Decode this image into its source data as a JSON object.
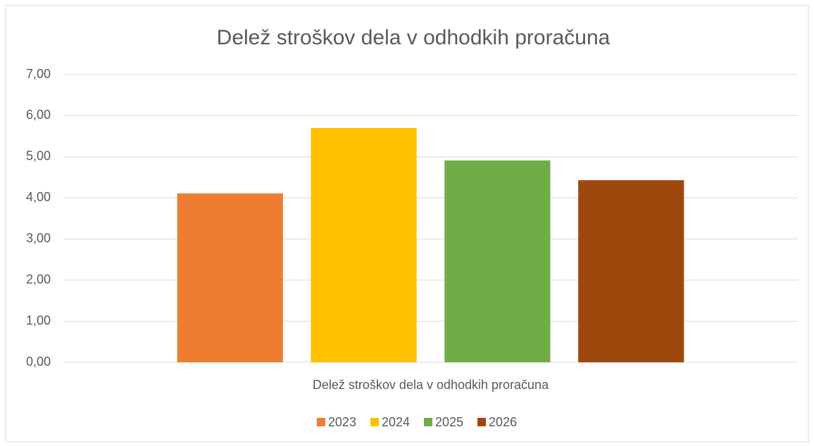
{
  "chart_data": {
    "type": "bar",
    "title": "Delež stroškov dela v odhodkih proračuna",
    "categories": [
      "Delež stroškov dela v odhodkih proračuna"
    ],
    "series": [
      {
        "name": "2023",
        "color": "#ed7d31",
        "values": [
          4.11
        ]
      },
      {
        "name": "2024",
        "color": "#ffc000",
        "values": [
          5.7
        ]
      },
      {
        "name": "2025",
        "color": "#70ad47",
        "values": [
          4.91
        ]
      },
      {
        "name": "2026",
        "color": "#9e480e",
        "values": [
          4.43
        ]
      }
    ],
    "ylim": [
      0,
      7
    ],
    "yticks": [
      {
        "value": 0,
        "label": "0,00"
      },
      {
        "value": 1,
        "label": "1,00"
      },
      {
        "value": 2,
        "label": "2,00"
      },
      {
        "value": 3,
        "label": "3,00"
      },
      {
        "value": 4,
        "label": "4,00"
      },
      {
        "value": 5,
        "label": "5,00"
      },
      {
        "value": 6,
        "label": "6,00"
      },
      {
        "value": 7,
        "label": "7,00"
      }
    ],
    "grid": true,
    "legend": "bottom"
  }
}
